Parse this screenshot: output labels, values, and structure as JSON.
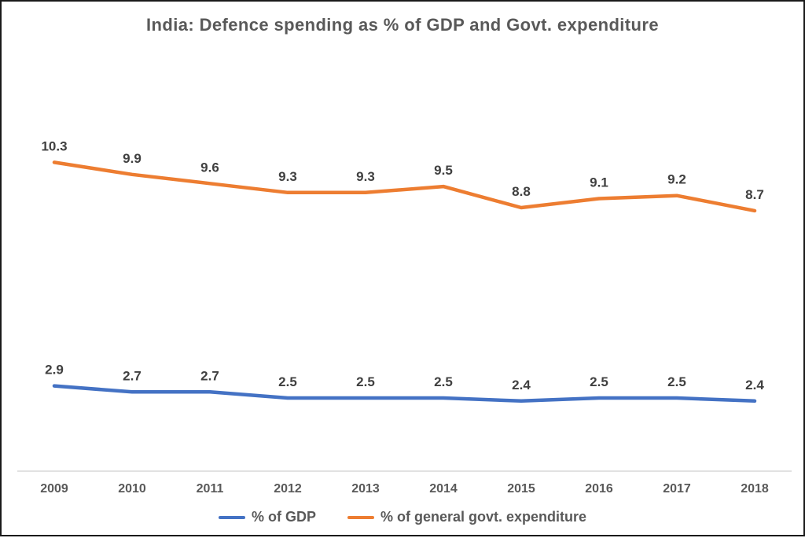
{
  "chart_data": {
    "type": "line",
    "title": "India: Defence spending as % of GDP and Govt. expenditure",
    "categories": [
      "2009",
      "2010",
      "2011",
      "2012",
      "2013",
      "2014",
      "2015",
      "2016",
      "2017",
      "2018"
    ],
    "series": [
      {
        "name": "% of GDP",
        "color": "#4472C4",
        "values": [
          2.9,
          2.7,
          2.7,
          2.5,
          2.5,
          2.5,
          2.4,
          2.5,
          2.5,
          2.4
        ]
      },
      {
        "name": "% of general govt. expenditure",
        "color": "#ED7D31",
        "values": [
          10.3,
          9.9,
          9.6,
          9.3,
          9.3,
          9.5,
          8.8,
          9.1,
          9.2,
          8.7
        ]
      }
    ],
    "ylim": [
      0,
      13.8
    ],
    "grid": false,
    "data_labels": true,
    "legend_position": "bottom",
    "xlabel": "",
    "ylabel": ""
  },
  "colors": {
    "background": "#ffffff",
    "page_border": "#1a1a1a",
    "title_text": "#595959",
    "data_label_text": "#404040",
    "axis_label_text": "#595959",
    "axis_line": "#D9D9D9",
    "gdp_line": "#4472C4",
    "govt_expenditure_line": "#ED7D31"
  }
}
